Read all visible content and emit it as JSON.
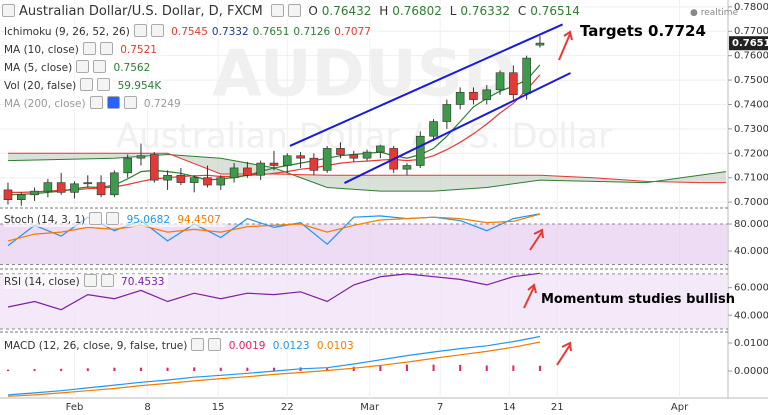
{
  "chart_data": [
    {
      "type": "candlestick",
      "title": "Australian Dollar/U.S. Dollar, D, FXCM",
      "status": "realtime",
      "watermark": [
        "AUDUSD",
        "Australian Dollar / U.S. Dollar"
      ],
      "ohlc_labels": [
        "O",
        "H",
        "L",
        "C"
      ],
      "ohlc": [
        0.76432,
        0.76802,
        0.76332,
        0.76514
      ],
      "up_color": "#3d9a4a",
      "down_color": "#e53935",
      "x": [
        0,
        1,
        2,
        3,
        4,
        5,
        6,
        7,
        8,
        9,
        10,
        11,
        12,
        13,
        14,
        15,
        16,
        17,
        18,
        19,
        20,
        21,
        22,
        23,
        24,
        25,
        26,
        27,
        28,
        29,
        30,
        31,
        32,
        33,
        34,
        35,
        36,
        37,
        38,
        39,
        40
      ],
      "open": [
        0.705,
        0.701,
        0.703,
        0.7045,
        0.708,
        0.704,
        0.7075,
        0.708,
        0.703,
        0.712,
        0.718,
        0.7195,
        0.709,
        0.711,
        0.708,
        0.71,
        0.707,
        0.71,
        0.714,
        0.711,
        0.716,
        0.715,
        0.719,
        0.718,
        0.713,
        0.722,
        0.7195,
        0.718,
        0.7205,
        0.722,
        0.7135,
        0.715,
        0.727,
        0.733,
        0.74,
        0.745,
        0.742,
        0.746,
        0.753,
        0.7445,
        0.76432
      ],
      "high": [
        0.708,
        0.704,
        0.706,
        0.7095,
        0.712,
        0.7085,
        0.711,
        0.711,
        0.713,
        0.7195,
        0.724,
        0.7205,
        0.713,
        0.714,
        0.711,
        0.715,
        0.711,
        0.716,
        0.7165,
        0.717,
        0.721,
        0.72,
        0.7205,
        0.72,
        0.723,
        0.7245,
        0.721,
        0.7215,
        0.7235,
        0.723,
        0.716,
        0.729,
        0.734,
        0.742,
        0.747,
        0.747,
        0.748,
        0.754,
        0.756,
        0.76,
        0.76802
      ],
      "low": [
        0.699,
        0.6985,
        0.7005,
        0.702,
        0.703,
        0.7015,
        0.706,
        0.702,
        0.702,
        0.71,
        0.715,
        0.708,
        0.705,
        0.707,
        0.704,
        0.706,
        0.705,
        0.708,
        0.71,
        0.709,
        0.713,
        0.712,
        0.714,
        0.711,
        0.712,
        0.718,
        0.7165,
        0.717,
        0.718,
        0.712,
        0.711,
        0.714,
        0.725,
        0.73,
        0.738,
        0.74,
        0.74,
        0.744,
        0.742,
        0.742,
        0.76332
      ],
      "close": [
        0.701,
        0.703,
        0.7045,
        0.708,
        0.704,
        0.7075,
        0.708,
        0.703,
        0.712,
        0.718,
        0.719,
        0.709,
        0.711,
        0.708,
        0.71,
        0.707,
        0.71,
        0.714,
        0.711,
        0.716,
        0.715,
        0.719,
        0.718,
        0.713,
        0.722,
        0.7195,
        0.718,
        0.7205,
        0.723,
        0.7135,
        0.715,
        0.727,
        0.733,
        0.74,
        0.745,
        0.742,
        0.746,
        0.753,
        0.744,
        0.759,
        0.76514
      ],
      "series": [
        {
          "name": "MA (10, close)",
          "color": "#e53935",
          "legend_value": 0.7521,
          "values": [
            0.704,
            0.704,
            0.7042,
            0.7045,
            0.7048,
            0.705,
            0.7055,
            0.7058,
            0.7062,
            0.7072,
            0.7085,
            0.7095,
            0.71,
            0.7105,
            0.7108,
            0.711,
            0.7105,
            0.7105,
            0.711,
            0.7112,
            0.7118,
            0.7125,
            0.7135,
            0.714,
            0.715,
            0.716,
            0.7165,
            0.7168,
            0.7172,
            0.7175,
            0.717,
            0.7175,
            0.719,
            0.7215,
            0.7245,
            0.728,
            0.732,
            0.7365,
            0.7405,
            0.746,
            0.7521
          ]
        },
        {
          "name": "MA (5, close)",
          "color": "#2e7d32",
          "legend_value": 0.7562,
          "values": [
            0.703,
            0.7032,
            0.7035,
            0.704,
            0.7045,
            0.7055,
            0.7062,
            0.706,
            0.707,
            0.7095,
            0.7125,
            0.713,
            0.7125,
            0.7118,
            0.7105,
            0.709,
            0.7095,
            0.71,
            0.711,
            0.7125,
            0.714,
            0.715,
            0.716,
            0.717,
            0.718,
            0.719,
            0.7195,
            0.72,
            0.7205,
            0.719,
            0.718,
            0.7195,
            0.722,
            0.727,
            0.733,
            0.739,
            0.7425,
            0.7455,
            0.7475,
            0.75,
            0.7562
          ]
        }
      ],
      "ichimoku": {
        "name": "Ichimoku (9, 26, 52, 26)",
        "legend_values": [
          0.7545,
          0.7332,
          0.7651,
          0.7126,
          0.7077
        ],
        "legend_colors": [
          "#e53935",
          "#1e3a8a",
          "#2e7d32",
          "#2e7d32",
          "#e53935"
        ],
        "span_a_color": "#2e7d32",
        "span_b_color": "#e53935",
        "fill": "#b9c9b9",
        "x": [
          0,
          8,
          12,
          16,
          20,
          24,
          28,
          32,
          36,
          40,
          44,
          48,
          52,
          54
        ],
        "span_a": [
          0.717,
          0.718,
          0.7195,
          0.718,
          0.714,
          0.706,
          0.7045,
          0.7045,
          0.706,
          0.709,
          0.7085,
          0.708,
          0.711,
          0.7125
        ],
        "span_b": [
          0.72,
          0.72,
          0.72,
          0.7115,
          0.7115,
          0.711,
          0.711,
          0.711,
          0.711,
          0.711,
          0.71,
          0.7085,
          0.708,
          0.708
        ]
      },
      "volume": {
        "name": "Vol (20, false)",
        "legend_value": "59.954K"
      },
      "ma200": {
        "name": "MA (200, close)",
        "legend_value": 0.7249
      },
      "trendlines": [
        {
          "color": "#1a1adb",
          "x": [
            21.2,
            41.7
          ],
          "y": [
            0.723,
            0.7728
          ]
        },
        {
          "color": "#1a1adb",
          "x": [
            25.3,
            42.3
          ],
          "y": [
            0.7078,
            0.7529
          ]
        }
      ],
      "price_tag": 0.7651,
      "annotations": [
        "Targets 0.7724",
        "Momentum studies bullish"
      ],
      "xlim": [
        -0.6,
        54.14
      ],
      "xticks": [
        {
          "value": 5,
          "label": "Feb"
        },
        {
          "value": 10.5,
          "label": "8"
        },
        {
          "value": 15.8,
          "label": "15"
        },
        {
          "value": 21,
          "label": "22"
        },
        {
          "value": 27.2,
          "label": "Mar"
        },
        {
          "value": 32.5,
          "label": "7"
        },
        {
          "value": 37.7,
          "label": "14"
        },
        {
          "value": 41.3,
          "label": "21"
        },
        {
          "value": 50.5,
          "label": "Apr"
        }
      ],
      "ylim": [
        0.698,
        0.7828
      ],
      "yticks": [
        {
          "value": 0.7,
          "label": "0.7000"
        },
        {
          "value": 0.71,
          "label": "0.7100"
        },
        {
          "value": 0.72,
          "label": "0.7200"
        },
        {
          "value": 0.73,
          "label": "0.7300"
        },
        {
          "value": 0.74,
          "label": "0.7400"
        },
        {
          "value": 0.75,
          "label": "0.7500"
        },
        {
          "value": 0.76,
          "label": "0.7600"
        },
        {
          "value": 0.77,
          "label": "0.7700"
        },
        {
          "value": 0.78,
          "label": "0.7800"
        }
      ],
      "grid": true
    },
    {
      "type": "line",
      "title": "Stoch (14, 3, 1)",
      "x": [
        0,
        2,
        4,
        6,
        8,
        10,
        12,
        14,
        16,
        18,
        20,
        22,
        24,
        26,
        28,
        30,
        32,
        34,
        36,
        38,
        40
      ],
      "series": [
        {
          "color": "#2196f3",
          "legend_value": 95.0682,
          "style": "line",
          "values": [
            48,
            78,
            62,
            90,
            70,
            85,
            55,
            80,
            60,
            88,
            75,
            82,
            50,
            90,
            92,
            88,
            90,
            85,
            70,
            88,
            95.0682
          ]
        },
        {
          "color": "#f57c00",
          "legend_value": 94.4507,
          "style": "line",
          "values": [
            55,
            65,
            68,
            75,
            72,
            78,
            68,
            72,
            68,
            76,
            78,
            80,
            68,
            78,
            86,
            88,
            90,
            88,
            82,
            84,
            94.4507
          ]
        }
      ],
      "band": [
        20,
        80
      ],
      "band_color": "#e6cdf0",
      "ylim": [
        16.3,
        102.2
      ],
      "yticks": [
        {
          "value": 80,
          "label": "80.0000"
        },
        {
          "value": 40,
          "label": "40.0000"
        }
      ]
    },
    {
      "type": "line",
      "title": "RSI (14, close)",
      "x": [
        0,
        2,
        4,
        6,
        8,
        10,
        12,
        14,
        16,
        18,
        20,
        22,
        24,
        26,
        28,
        30,
        32,
        34,
        36,
        38,
        40
      ],
      "series": [
        {
          "color": "#7b1fa2",
          "legend_value": 70.4533,
          "style": "line",
          "values": [
            46,
            50,
            44,
            55,
            52,
            58,
            50,
            56,
            52,
            56,
            55,
            57,
            50,
            62,
            68,
            70,
            68,
            66,
            62,
            68,
            70.4533
          ]
        }
      ],
      "band": [
        30,
        70
      ],
      "band_color": "#efdff5",
      "ylim": [
        29.3,
        72.1
      ],
      "yticks": [
        {
          "value": 60,
          "label": "60.0000"
        },
        {
          "value": 40,
          "label": "40.0000"
        }
      ]
    },
    {
      "type": "line",
      "title": "MACD (12, 26, close, 9, false, true)",
      "x": [
        0,
        2,
        4,
        6,
        8,
        10,
        12,
        14,
        16,
        18,
        20,
        22,
        24,
        26,
        28,
        30,
        32,
        34,
        36,
        38,
        40
      ],
      "series": [
        {
          "color": "#e91e63",
          "legend_value": 0.0019,
          "style": "histogram",
          "values": [
            0.0005,
            0.0007,
            0.0008,
            0.001,
            0.0012,
            0.0012,
            0.0012,
            0.0013,
            0.0012,
            0.0012,
            0.0012,
            0.0013,
            0.001,
            0.0015,
            0.002,
            0.0023,
            0.0023,
            0.0022,
            0.002,
            0.002,
            0.0019
          ]
        },
        {
          "color": "#2196f3",
          "legend_value": 0.0123,
          "style": "line",
          "values": [
            -0.0085,
            -0.0078,
            -0.007,
            -0.006,
            -0.005,
            -0.004,
            -0.0032,
            -0.0022,
            -0.0015,
            -0.0008,
            0.0,
            0.0008,
            0.0012,
            0.0025,
            0.004,
            0.0055,
            0.0068,
            0.008,
            0.009,
            0.0105,
            0.0123
          ]
        },
        {
          "color": "#f57c00",
          "legend_value": 0.0103,
          "style": "line",
          "values": [
            -0.009,
            -0.0085,
            -0.0078,
            -0.007,
            -0.0062,
            -0.0052,
            -0.0044,
            -0.0035,
            -0.0027,
            -0.002,
            -0.0012,
            -0.0005,
            0.0002,
            0.001,
            0.002,
            0.0032,
            0.0045,
            0.0058,
            0.007,
            0.0085,
            0.0103
          ]
        }
      ],
      "ylim": [
        -0.0096,
        0.0132
      ],
      "yticks": [
        {
          "value": 0.01,
          "label": "0.0100"
        },
        {
          "value": 0,
          "label": "0.0000"
        }
      ]
    }
  ]
}
